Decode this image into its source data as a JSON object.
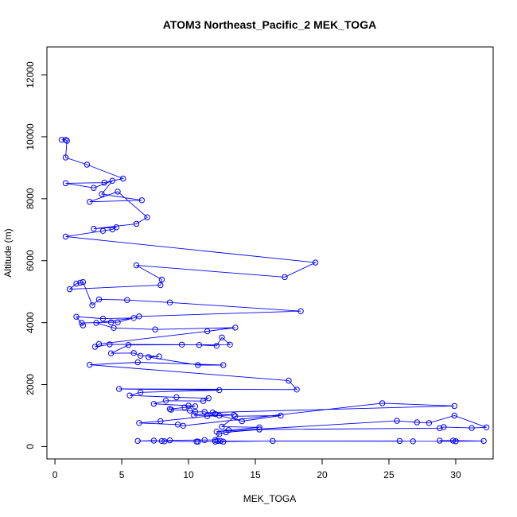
{
  "chart_data": {
    "type": "line",
    "title": "ATOM3 Northeast_Pacific_2 MEK_TOGA",
    "xlabel": "MEK_TOGA",
    "ylabel": "Altitude (m)",
    "xlim": [
      -0.6,
      32.8
    ],
    "ylim": [
      -400,
      12900
    ],
    "x_ticks": [
      0,
      5,
      10,
      15,
      20,
      25,
      30
    ],
    "y_ticks": [
      0,
      2000,
      4000,
      6000,
      8000,
      10000,
      12000
    ],
    "marker": "open-circle",
    "line_color": "#0000ff",
    "grid": false,
    "series": [
      {
        "x": [
          0.5,
          0.8,
          0.9,
          0.8,
          2.4,
          5.1,
          3.7,
          0.8,
          2.9,
          4.3,
          3.5,
          6.5,
          2.6,
          4.7,
          6.9,
          6.1,
          2.9,
          4.6,
          4.3,
          3.6,
          0.8,
          19.5,
          17.2,
          6.1,
          8.0,
          7.9,
          1.1,
          1.6,
          1.9,
          2.1,
          2.8,
          3.3,
          5.4,
          8.6,
          18.4,
          6.3,
          4.7,
          4.2,
          2.0,
          2.1,
          1.6,
          3.6,
          5.9,
          3.1,
          4.4,
          7.5,
          13.5,
          11.4,
          3.3,
          3.0,
          4.1,
          9.5,
          10.8,
          12.1,
          12.5,
          13.1,
          5.5,
          4.2,
          5.9,
          6.4,
          7.8,
          7.0,
          10.7,
          12.6,
          6.2,
          2.6,
          17.5,
          18.1,
          4.8,
          12.3,
          6.4,
          5.6,
          9.1,
          11.5,
          11.1,
          8.3,
          7.4,
          10.0,
          10.5,
          9.7,
          8.6,
          8.7,
          10.1,
          10.5,
          11.2,
          12.0,
          13.4,
          11.4,
          7.9,
          6.3,
          9.2,
          9.6,
          24.5,
          29.9,
          11.8,
          10.4,
          12.3,
          14.0,
          16.9,
          13.5,
          12.5,
          15.3,
          13.0,
          12.1,
          25.6,
          27.1,
          28.0,
          29.9,
          32.3,
          31.2,
          29.1,
          28.8,
          15.3,
          12.8,
          12.3,
          12.0,
          11.2,
          8.6,
          8.0,
          6.2,
          7.4,
          8.2,
          10.6,
          10.7,
          12.0,
          12.6,
          16.3,
          25.8,
          26.8,
          30.0,
          32.1,
          29.8,
          28.8,
          30.0,
          12.2,
          12.4
        ],
        "y": [
          9900,
          9900,
          9870,
          9330,
          9100,
          8650,
          8520,
          8500,
          8350,
          8580,
          8150,
          7950,
          7900,
          8230,
          7400,
          7190,
          7030,
          7080,
          7010,
          6960,
          6780,
          5940,
          5470,
          5850,
          5390,
          5210,
          5080,
          5260,
          5290,
          5310,
          4560,
          4750,
          4730,
          4650,
          4370,
          4200,
          4010,
          4010,
          3990,
          3910,
          4190,
          4130,
          4150,
          3990,
          3830,
          3780,
          3840,
          3720,
          3310,
          3220,
          3300,
          3290,
          3280,
          3250,
          3520,
          3290,
          3280,
          3010,
          3020,
          2930,
          2910,
          2890,
          2630,
          2630,
          2720,
          2640,
          2130,
          1840,
          1860,
          1820,
          1750,
          1650,
          1590,
          1560,
          1470,
          1480,
          1380,
          1320,
          1300,
          1260,
          1210,
          1190,
          1160,
          1120,
          1120,
          1050,
          1020,
          980,
          820,
          760,
          710,
          670,
          1400,
          1310,
          1100,
          1010,
          1000,
          820,
          1000,
          980,
          640,
          620,
          530,
          480,
          830,
          780,
          760,
          1000,
          620,
          600,
          630,
          590,
          550,
          460,
          400,
          210,
          210,
          200,
          180,
          180,
          190,
          170,
          160,
          160,
          160,
          160,
          180,
          180,
          170,
          170,
          180,
          190,
          190,
          170,
          180,
          180
        ]
      }
    ]
  }
}
